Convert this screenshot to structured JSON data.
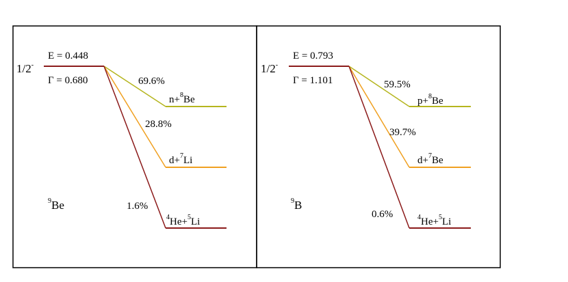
{
  "colors": {
    "frame": "#000000",
    "state": "#8b1a1a",
    "channel_neutron_proton": "#b5b51e",
    "channel_deuteron": "#f0a020",
    "channel_helium": "#8b1a1a"
  },
  "panels": [
    {
      "nucleus_mass": "9",
      "nucleus_symbol": "Be",
      "spin": "1/2",
      "parity": "-",
      "energy": "E = 0.448",
      "width": "Γ = 0.680",
      "channels": [
        {
          "percent": "69.6%",
          "pre_mass": "n+",
          "mass": "8",
          "symbol": "Be"
        },
        {
          "percent": "28.8%",
          "pre_mass": "d+",
          "mass": "7",
          "symbol": "Li"
        },
        {
          "percent": "1.6%",
          "pre_mass": "",
          "mass": "4",
          "symbol": "He+",
          "mass2": "5",
          "symbol2": "Li"
        }
      ]
    },
    {
      "nucleus_mass": "9",
      "nucleus_symbol": "B",
      "spin": "1/2",
      "parity": "-",
      "energy": "E = 0.793",
      "width": "Γ = 1.101",
      "channels": [
        {
          "percent": "59.5%",
          "pre_mass": "p+",
          "mass": "8",
          "symbol": "Be"
        },
        {
          "percent": "39.7%",
          "pre_mass": "d+",
          "mass": "7",
          "symbol": "Be"
        },
        {
          "percent": "0.6%",
          "pre_mass": "",
          "mass": "4",
          "symbol": "He+",
          "mass2": "5",
          "symbol2": "Li"
        }
      ]
    }
  ]
}
